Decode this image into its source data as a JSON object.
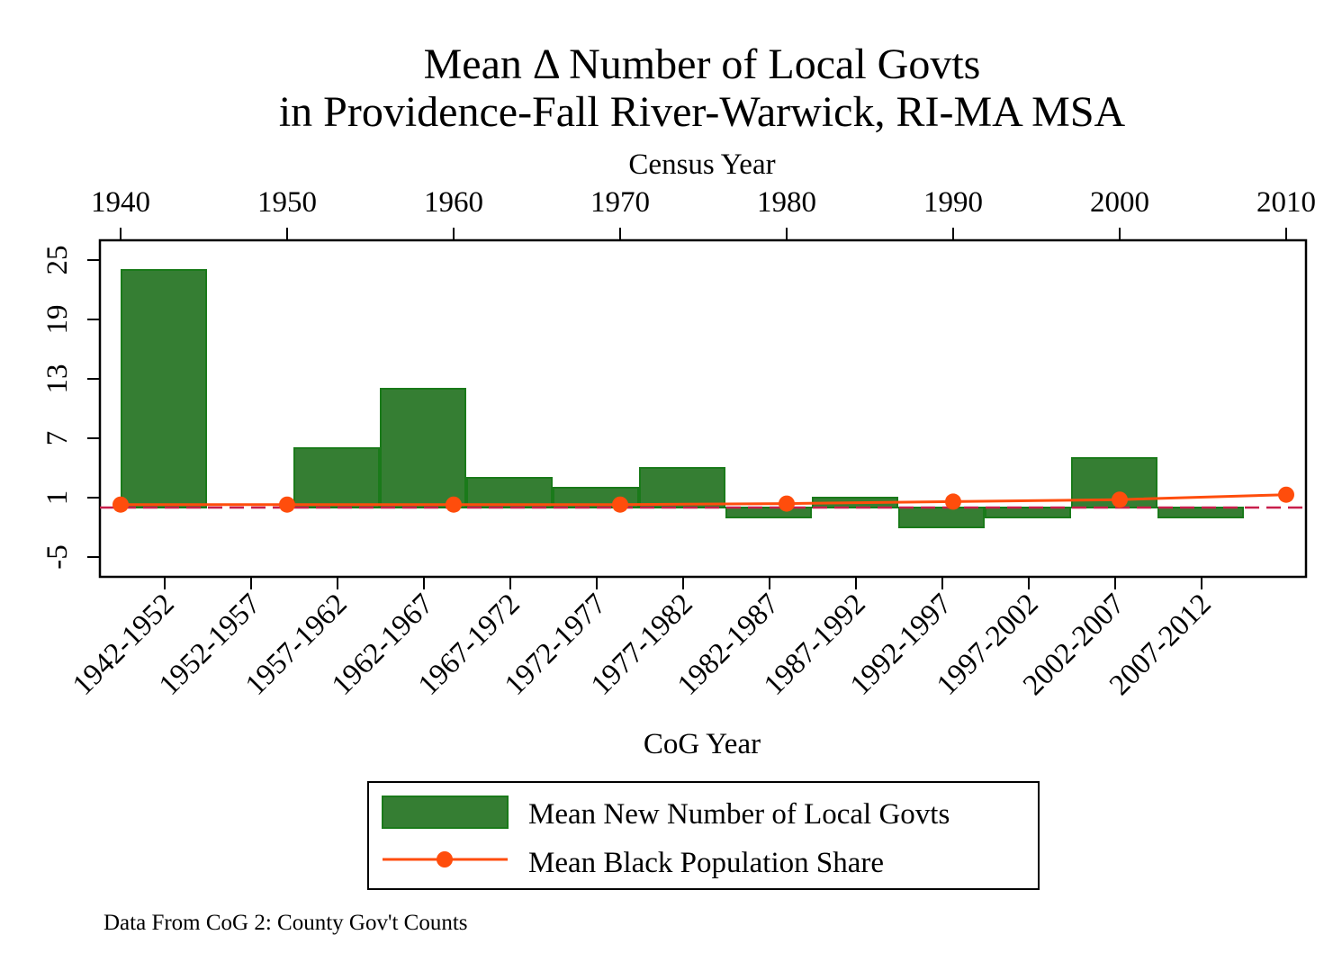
{
  "chart_data": {
    "type": "bar",
    "title_line1": "Mean Δ Number of Local Govts",
    "title_line2": "in Providence-Fall River-Warwick, RI-MA MSA",
    "top_axis_label": "Census Year",
    "xlabel": "CoG Year",
    "ylabel": "",
    "categories": [
      "1942-1952",
      "1952-1957",
      "1957-1962",
      "1962-1967",
      "1967-1972",
      "1972-1977",
      "1977-1982",
      "1982-1987",
      "1987-1992",
      "1992-1997",
      "1997-2002",
      "2002-2007",
      "2007-2012"
    ],
    "y_ticks": [
      -5,
      1,
      7,
      13,
      19,
      25
    ],
    "ylim": [
      -7,
      27
    ],
    "top_ticks": [
      1940,
      1950,
      1960,
      1970,
      1980,
      1990,
      2000,
      2010
    ],
    "series": [
      {
        "name": "Mean New Number of Local Govts",
        "type": "bar",
        "color": "#357e33",
        "edge_color": "#1a7a1a",
        "values": [
          24,
          0,
          6,
          12,
          3,
          2,
          4,
          -1,
          1,
          -2,
          -1,
          5,
          -1
        ]
      },
      {
        "name": "Mean Black Population Share",
        "type": "line",
        "color": "#ff4d0c",
        "x": [
          1940,
          1950,
          1960,
          1970,
          1980,
          1990,
          2000,
          2010
        ],
        "values": [
          0.3,
          0.3,
          0.3,
          0.3,
          0.4,
          0.6,
          0.8,
          1.3
        ]
      }
    ],
    "reference_line": {
      "y": 0,
      "color": "#c81e4b",
      "style": "dashed"
    },
    "legend_position": "bottom",
    "grid": false,
    "note": "Data From CoG 2: County Gov't Counts"
  }
}
